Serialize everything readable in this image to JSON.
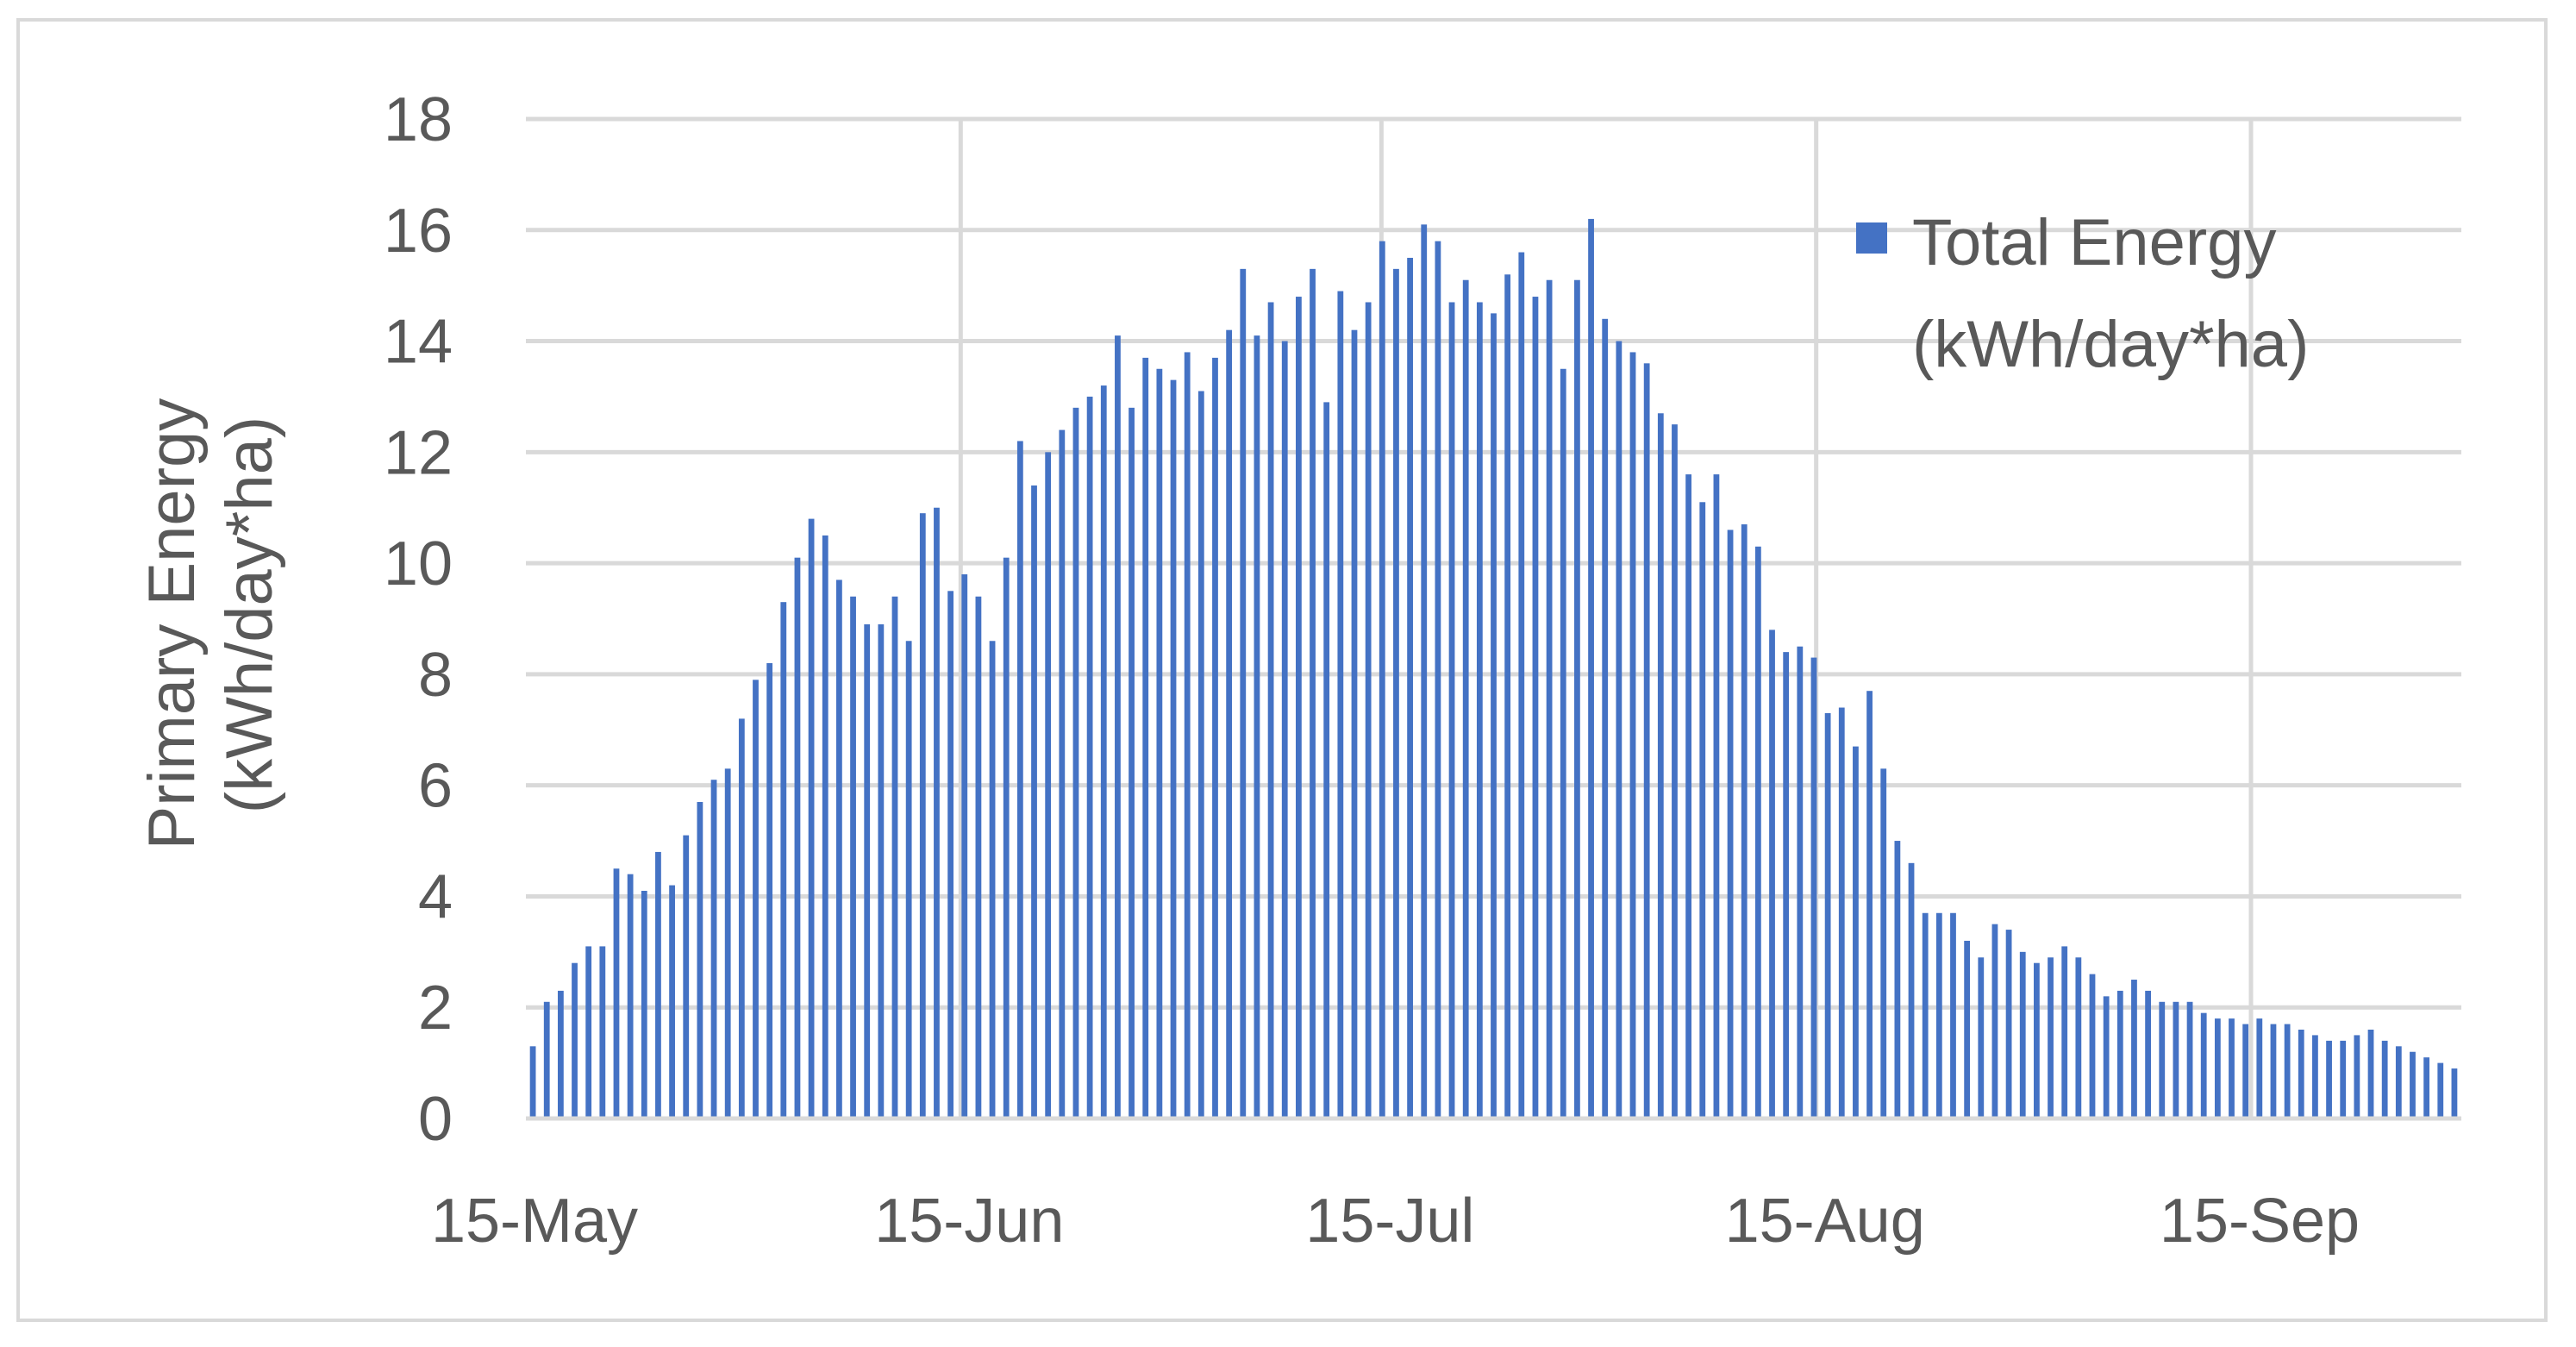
{
  "chart_data": {
    "type": "bar",
    "title": "",
    "xlabel": "",
    "ylabel_lines": [
      "Primary Energy",
      "(kWh/day*ha)"
    ],
    "ylim": [
      0,
      18
    ],
    "yticks": [
      0,
      2,
      4,
      6,
      8,
      10,
      12,
      14,
      16,
      18
    ],
    "x_start": "2000-05-15",
    "x_end": "2000-09-30",
    "xticks": [
      {
        "date": "2000-05-15",
        "label": "15-May"
      },
      {
        "date": "2000-06-15",
        "label": "15-Jun"
      },
      {
        "date": "2000-07-15",
        "label": "15-Jul"
      },
      {
        "date": "2000-08-15",
        "label": "15-Aug"
      },
      {
        "date": "2000-09-15",
        "label": "15-Sep"
      }
    ],
    "grid": true,
    "legend": {
      "position": "top-right",
      "lines": [
        "Total Energy",
        "(kWh/day*ha)"
      ]
    },
    "bar_color": "#4472c4",
    "series": [
      {
        "legend_lines": [
          "Total Energy",
          "(kWh/day*ha)"
        ],
        "values": [
          1.3,
          2.1,
          2.3,
          2.8,
          3.1,
          3.1,
          4.5,
          4.4,
          4.1,
          4.8,
          4.2,
          5.1,
          5.7,
          6.1,
          6.3,
          7.2,
          7.9,
          8.2,
          9.3,
          10.1,
          10.8,
          10.5,
          9.7,
          9.4,
          8.9,
          8.9,
          9.4,
          8.6,
          10.9,
          11.0,
          9.5,
          9.8,
          9.4,
          8.6,
          10.1,
          12.2,
          11.4,
          12.0,
          12.4,
          12.8,
          13.0,
          13.2,
          14.1,
          12.8,
          13.7,
          13.5,
          13.3,
          13.8,
          13.1,
          13.7,
          14.2,
          15.3,
          14.1,
          14.7,
          14.0,
          14.8,
          15.3,
          12.9,
          14.9,
          14.2,
          14.7,
          15.8,
          15.3,
          15.5,
          16.1,
          15.8,
          14.7,
          15.1,
          14.7,
          14.5,
          15.2,
          15.6,
          14.8,
          15.1,
          13.5,
          15.1,
          16.2,
          14.4,
          14.0,
          13.8,
          13.6,
          12.7,
          12.5,
          11.6,
          11.1,
          11.6,
          10.6,
          10.7,
          10.3,
          8.8,
          8.4,
          8.5,
          8.3,
          7.3,
          7.4,
          6.7,
          7.7,
          6.3,
          5.0,
          4.6,
          3.7,
          3.7,
          3.7,
          3.2,
          2.9,
          3.5,
          3.4,
          3.0,
          2.8,
          2.9,
          3.1,
          2.9,
          2.6,
          2.2,
          2.3,
          2.5,
          2.3,
          2.1,
          2.1,
          2.1,
          1.9,
          1.8,
          1.8,
          1.7,
          1.8,
          1.7,
          1.7,
          1.6,
          1.5,
          1.4,
          1.4,
          1.5,
          1.6,
          1.4,
          1.3,
          1.2,
          1.1,
          1.0,
          0.9
        ]
      }
    ]
  }
}
